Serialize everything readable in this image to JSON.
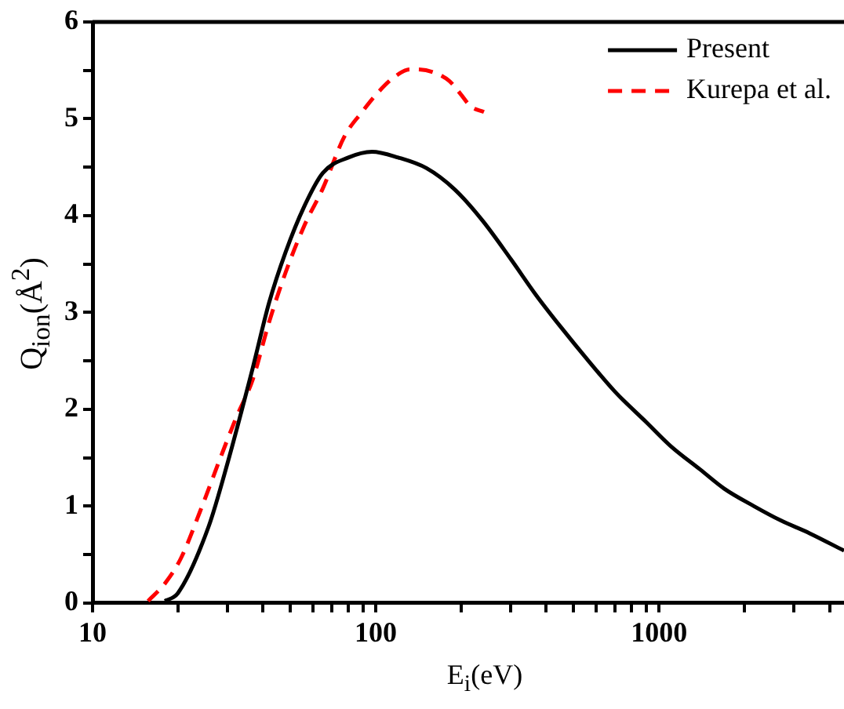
{
  "chart_data": {
    "type": "line",
    "xlabel": "E$_{i}$(eV)",
    "ylabel": "Q$_{ion}$(Å$^{2}$)",
    "log": "x",
    "xlim": [
      10,
      4500
    ],
    "ylim": [
      0,
      6
    ],
    "xticks": [
      10,
      {
        "value": 20,
        "label": null
      },
      {
        "value": 30,
        "label": null
      },
      {
        "value": 40,
        "label": null
      },
      {
        "value": 50,
        "label": null
      },
      {
        "value": 60,
        "label": null
      },
      {
        "value": 70,
        "label": null
      },
      {
        "value": 80,
        "label": null
      },
      {
        "value": 90,
        "label": null
      },
      100,
      {
        "value": 200,
        "label": null
      },
      {
        "value": 300,
        "label": null
      },
      {
        "value": 400,
        "label": null
      },
      {
        "value": 500,
        "label": null
      },
      {
        "value": 600,
        "label": null
      },
      {
        "value": 700,
        "label": null
      },
      {
        "value": 800,
        "label": null
      },
      {
        "value": 900,
        "label": null
      },
      1000,
      {
        "value": 2000,
        "label": null
      },
      {
        "value": 3000,
        "label": null
      },
      {
        "value": 4000,
        "label": null
      }
    ],
    "yticks": [
      0,
      {
        "value": 0.5,
        "label": null
      },
      1,
      {
        "value": 1.5,
        "label": null
      },
      2,
      {
        "value": 2.5,
        "label": null
      },
      3,
      {
        "value": 3.5,
        "label": null
      },
      4,
      {
        "value": 4.5,
        "label": null
      },
      5,
      {
        "value": 5.5,
        "label": null
      },
      6
    ],
    "grid": false,
    "legend": "top right",
    "series": [
      {
        "name": "Present",
        "color": "#000000",
        "line_style": "solid",
        "x": [
          18,
          20,
          25.7,
          30,
          36.8,
          42,
          48,
          56,
          65,
          80,
          97,
          120,
          151,
          190,
          238,
          300,
          368,
          450,
          571,
          700,
          900,
          1100,
          1395,
          1700,
          2163,
          2700,
          3400,
          4500
        ],
        "values": [
          0.02,
          0.1,
          0.79,
          1.45,
          2.43,
          3.1,
          3.62,
          4.1,
          4.44,
          4.6,
          4.66,
          4.6,
          4.49,
          4.27,
          3.95,
          3.55,
          3.18,
          2.85,
          2.48,
          2.18,
          1.87,
          1.62,
          1.38,
          1.18,
          1.0,
          0.85,
          0.72,
          0.54
        ]
      },
      {
        "name": "Kurepa et al.",
        "color": "#ff0000",
        "line_style": "dashed",
        "x": [
          15.7,
          18,
          20.5,
          24,
          28.2,
          32,
          36.8,
          42,
          48,
          56,
          65,
          77.6,
          90,
          101,
          115,
          132,
          139,
          160,
          182,
          200,
          216,
          241
        ],
        "values": [
          0.02,
          0.2,
          0.46,
          0.95,
          1.49,
          1.9,
          2.31,
          2.9,
          3.41,
          3.9,
          4.28,
          4.82,
          5.08,
          5.26,
          5.42,
          5.51,
          5.51,
          5.48,
          5.39,
          5.25,
          5.13,
          5.07
        ]
      }
    ]
  }
}
